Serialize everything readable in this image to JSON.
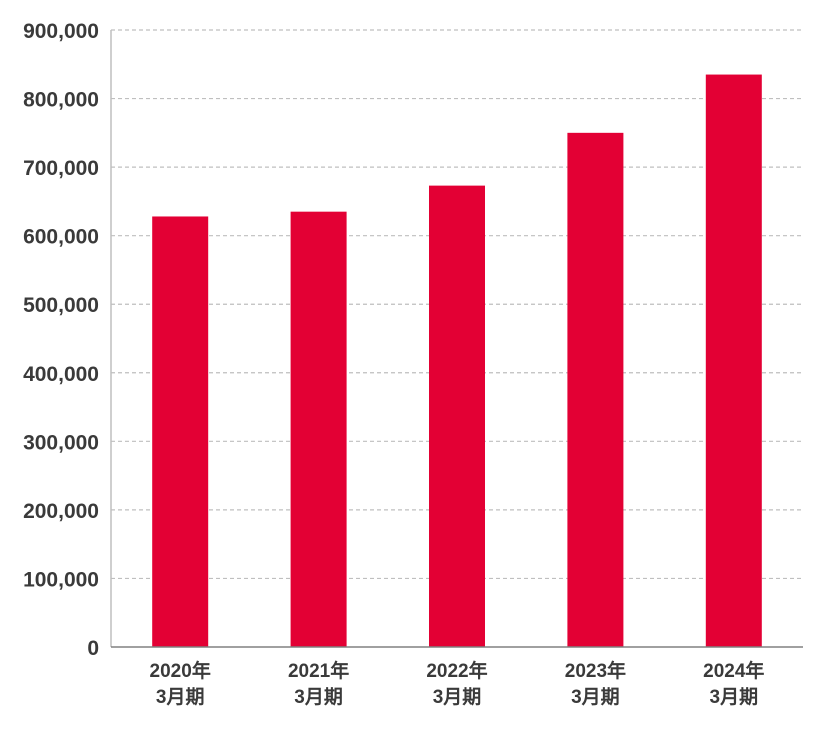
{
  "chart_data": {
    "type": "bar",
    "categories": [
      [
        "2020年",
        "3月期"
      ],
      [
        "2021年",
        "3月期"
      ],
      [
        "2022年",
        "3月期"
      ],
      [
        "2023年",
        "3月期"
      ],
      [
        "2024年",
        "3月期"
      ]
    ],
    "values": [
      628000,
      635000,
      673000,
      750000,
      835000
    ],
    "ylim": [
      0,
      900000
    ],
    "yticks": [
      0,
      100000,
      200000,
      300000,
      400000,
      500000,
      600000,
      700000,
      800000,
      900000
    ],
    "ytick_labels": [
      "0",
      "100,000",
      "200,000",
      "300,000",
      "400,000",
      "500,000",
      "600,000",
      "700,000",
      "800,000",
      "900,000"
    ],
    "grid": true,
    "bar_color": "#e30034",
    "grid_color": "#bfbfbf",
    "axis_color": "#808080",
    "title": "",
    "xlabel": "",
    "ylabel": ""
  }
}
